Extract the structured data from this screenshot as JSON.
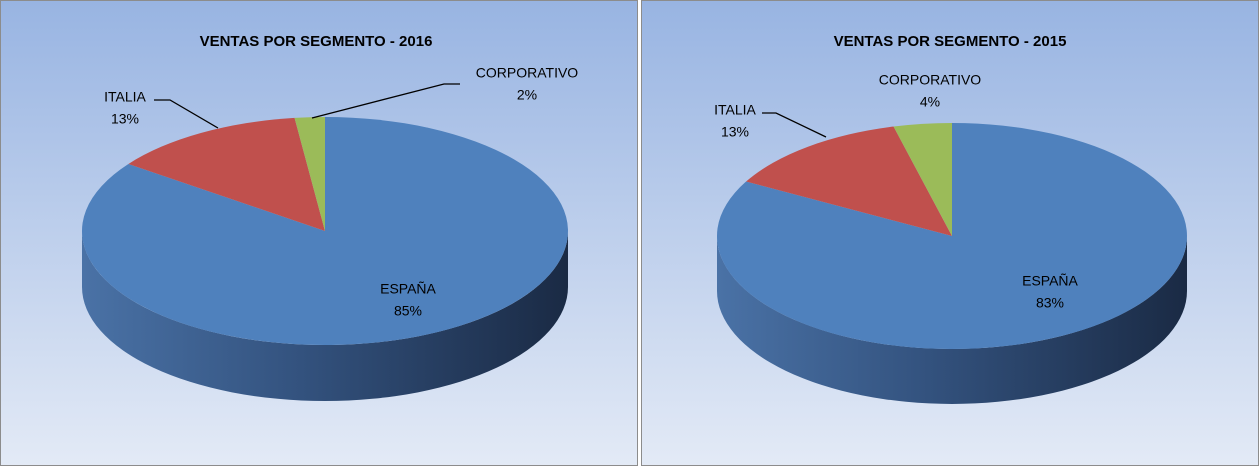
{
  "chart_data": [
    {
      "type": "pie",
      "title": "VENTAS POR SEGMENTO  - 2016",
      "categories": [
        "ESPAÑA",
        "ITALIA",
        "CORPORATIVO"
      ],
      "values": [
        85,
        13,
        2
      ],
      "value_labels": [
        "85%",
        "13%",
        "2%"
      ],
      "colors": [
        "#4f81bd",
        "#c0504d",
        "#9bbb59"
      ]
    },
    {
      "type": "pie",
      "title": "VENTAS POR SEGMENTO  - 2015",
      "categories": [
        "ESPAÑA",
        "ITALIA",
        "CORPORATIVO"
      ],
      "values": [
        83,
        13,
        4
      ],
      "value_labels": [
        "83%",
        "13%",
        "4%"
      ],
      "colors": [
        "#4f81bd",
        "#c0504d",
        "#9bbb59"
      ]
    }
  ]
}
